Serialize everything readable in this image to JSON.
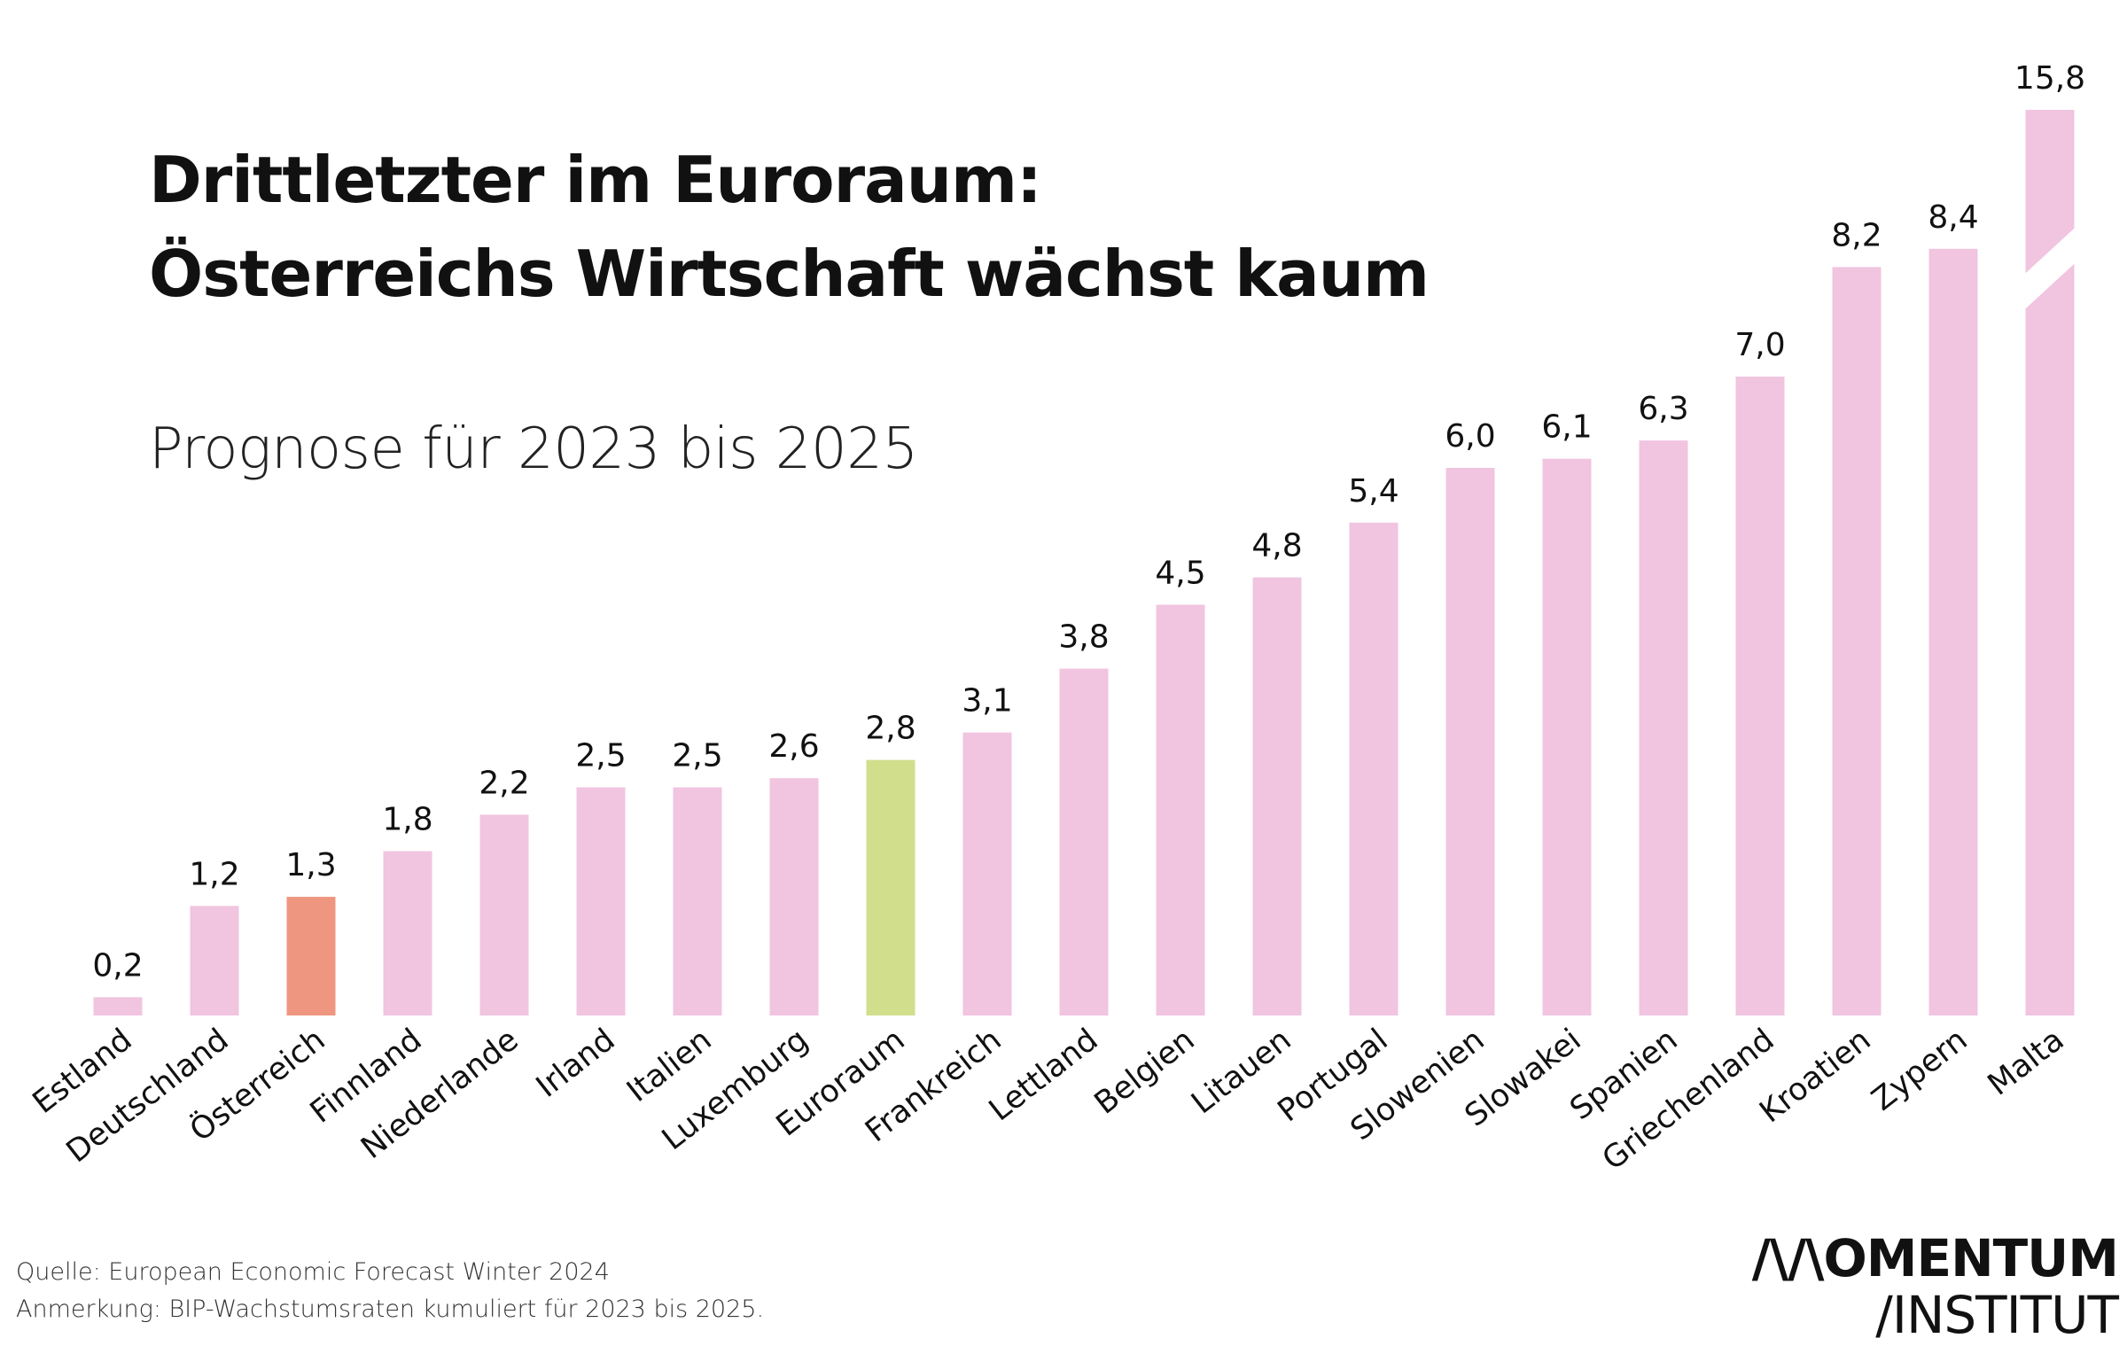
{
  "title_line1": "Drittletzter im Euroraum:",
  "title_line2": "Österreichs Wirtschaft wächst kaum",
  "subtitle": "Prognose für 2023 bis 2025",
  "source": "Quelle: European Economic Forecast Winter 2024",
  "note": "Anmerkung: BIP-Wachstumsraten kumuliert für 2023 bis 2025.",
  "logo": {
    "line1": "/\\/\\OMENTUM",
    "line2": "/INSTITUT"
  },
  "colors": {
    "default": "#f1c4e0",
    "highlight": "#ee9680",
    "reference": "#d1df8c"
  },
  "chart_data": {
    "type": "bar",
    "title": "Drittletzter im Euroraum: Österreichs Wirtschaft wächst kaum",
    "subtitle": "Prognose für 2023 bis 2025",
    "xlabel": "",
    "ylabel": "",
    "axis_break": "Malta",
    "grid": false,
    "categories": [
      "Estland",
      "Deutschland",
      "Österreich",
      "Finnland",
      "Niederlande",
      "Irland",
      "Italien",
      "Luxemburg",
      "Euroraum",
      "Frankreich",
      "Lettland",
      "Belgien",
      "Litauen",
      "Portugal",
      "Slowenien",
      "Slowakei",
      "Spanien",
      "Griechenland",
      "Kroatien",
      "Zypern",
      "Malta"
    ],
    "values": [
      0.2,
      1.2,
      1.3,
      1.8,
      2.2,
      2.5,
      2.5,
      2.6,
      2.8,
      3.1,
      3.8,
      4.5,
      4.8,
      5.4,
      6.0,
      6.1,
      6.3,
      7.0,
      8.2,
      8.4,
      15.8
    ],
    "value_labels": [
      "0,2",
      "1,2",
      "1,3",
      "1,8",
      "2,2",
      "2,5",
      "2,5",
      "2,6",
      "2,8",
      "3,1",
      "3,8",
      "4,5",
      "4,8",
      "5,4",
      "6,0",
      "6,1",
      "6,3",
      "7,0",
      "8,2",
      "8,4",
      "15,8"
    ],
    "highlight": {
      "Österreich": "highlight",
      "Euroraum": "reference"
    }
  }
}
